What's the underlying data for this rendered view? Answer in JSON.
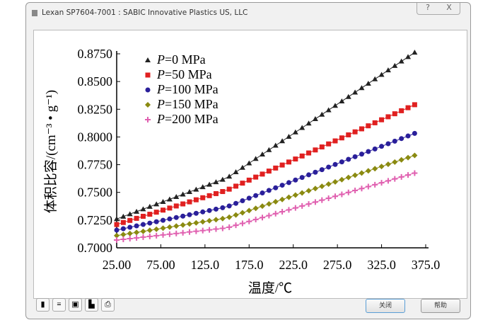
{
  "window": {
    "title": "Lexan SP7604-7001 : SABIC Innovative Plastics US, LLC",
    "help_icon": "?",
    "close_icon": "X"
  },
  "buttons": {
    "close": "关闭",
    "help": "帮助"
  },
  "toolbar_icons": [
    "color-icon",
    "legend-icon",
    "save-icon",
    "export-icon",
    "print-icon"
  ],
  "chart_data": {
    "type": "line",
    "title": "",
    "xlabel": "温度/℃",
    "ylabel": "体积比容/(cm⁻³ • g⁻¹)",
    "xlim": [
      25,
      375
    ],
    "ylim": [
      0.7,
      0.875
    ],
    "xticks": [
      "25.00",
      "75.00",
      "125.0",
      "175.0",
      "225.0",
      "275.0",
      "325.0",
      "375.0"
    ],
    "yticks": [
      "0.7000",
      "0.7250",
      "0.7500",
      "0.7750",
      "0.8000",
      "0.8250",
      "0.8500",
      "0.8750"
    ],
    "legend_position": "top-left",
    "x_range": [
      25,
      365
    ],
    "knee_x": 150,
    "series": [
      {
        "name": "P=0 MPa",
        "color": "#222222",
        "marker": "triangle",
        "start": 0.726,
        "knee": 0.763,
        "end": 0.8775
      },
      {
        "name": "P=50 MPa",
        "color": "#e02020",
        "marker": "square",
        "start": 0.721,
        "knee": 0.752,
        "end": 0.83
      },
      {
        "name": "P=100 MPa",
        "color": "#2a1f9a",
        "marker": "circle",
        "start": 0.716,
        "knee": 0.737,
        "end": 0.804
      },
      {
        "name": "P=150 MPa",
        "color": "#8a8a10",
        "marker": "diamond",
        "start": 0.711,
        "knee": 0.727,
        "end": 0.784
      },
      {
        "name": "P=200 MPa",
        "color": "#e060b0",
        "marker": "plus",
        "start": 0.707,
        "knee": 0.718,
        "end": 0.768
      }
    ]
  }
}
